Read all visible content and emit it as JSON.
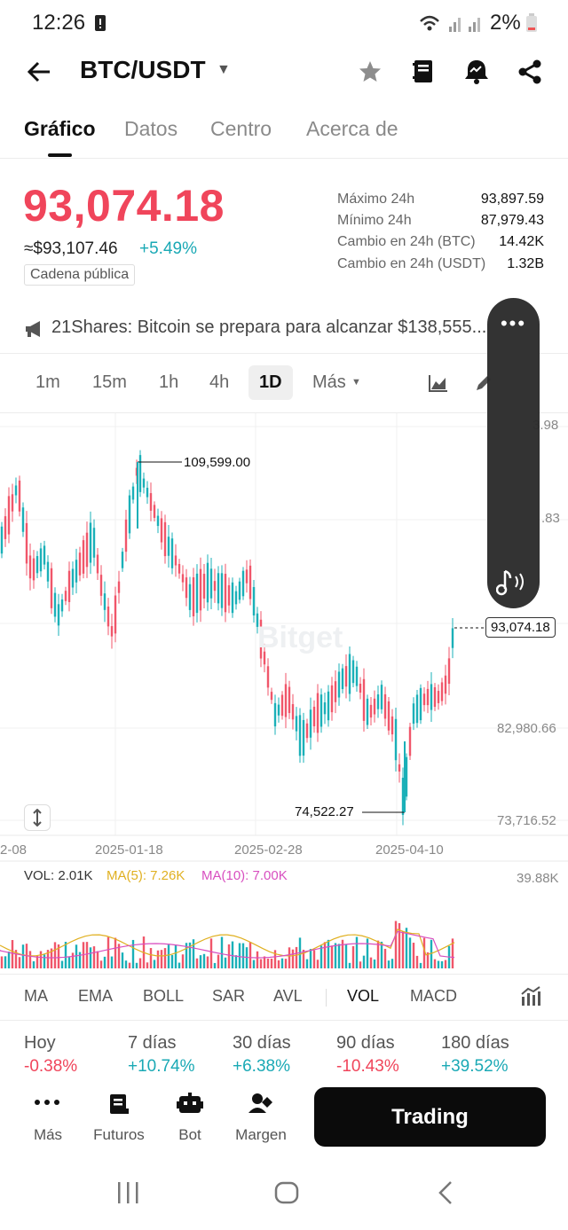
{
  "status_bar": {
    "time": "12:26",
    "battery": "2%"
  },
  "header": {
    "pair": "BTC/USDT"
  },
  "tabs": [
    {
      "label": "Gráfico",
      "active": true
    },
    {
      "label": "Datos",
      "active": false
    },
    {
      "label": "Centro",
      "active": false
    },
    {
      "label": "Acerca de",
      "active": false
    }
  ],
  "price": {
    "last": "93,074.18",
    "approx_usd": "≈$93,107.46",
    "change_pct": "+5.49%",
    "chain_badge": "Cadena pública"
  },
  "stats": [
    {
      "label": "Máximo 24h",
      "value": "93,897.59"
    },
    {
      "label": "Mínimo 24h",
      "value": "87,979.43"
    },
    {
      "label": "Cambio en 24h (BTC)",
      "value": "14.42K"
    },
    {
      "label": "Cambio en 24h (USDT)",
      "value": "1.32B"
    }
  ],
  "news": {
    "text": "21Shares: Bitcoin se prepara para alcanzar $138,555..."
  },
  "timeframes": [
    "1m",
    "15m",
    "1h",
    "4h",
    "1D",
    "Más"
  ],
  "active_timeframe": "1D",
  "chart": {
    "high_label": "109,599.00",
    "low_label": "74,522.27",
    "current_label": "93,074.18",
    "y_labels": [
      "3.98",
      ".83",
      "82,980.66",
      "73,716.52"
    ],
    "x_labels": [
      "2-08",
      "2025-01-18",
      "2025-02-28",
      "2025-04-10"
    ],
    "watermark": "Bitget",
    "colors": {
      "up": "#1ab0b8",
      "down": "#f0566a"
    }
  },
  "volume": {
    "vol": "VOL: 2.01K",
    "ma5": "MA(5): 7.26K",
    "ma10": "MA(10): 7.00K",
    "max_label": "39.88K",
    "colors": {
      "ma5": "#e0b020",
      "ma10": "#d84fc0"
    }
  },
  "indicators": [
    "MA",
    "EMA",
    "BOLL",
    "SAR",
    "AVL",
    "VOL",
    "MACD"
  ],
  "active_indicator": "VOL",
  "returns": [
    {
      "label": "Hoy",
      "value": "-0.38%"
    },
    {
      "label": "7 días",
      "value": "+10.74%"
    },
    {
      "label": "30 días",
      "value": "+6.38%"
    },
    {
      "label": "90 días",
      "value": "-10.43%"
    },
    {
      "label": "180 días",
      "value": "+39.52%"
    }
  ],
  "bottom_nav": [
    {
      "label": "Más",
      "icon": "more-icon"
    },
    {
      "label": "Futuros",
      "icon": "futures-icon"
    },
    {
      "label": "Bot",
      "icon": "bot-icon"
    },
    {
      "label": "Margen",
      "icon": "margin-icon"
    }
  ],
  "trade_button": "Trading"
}
